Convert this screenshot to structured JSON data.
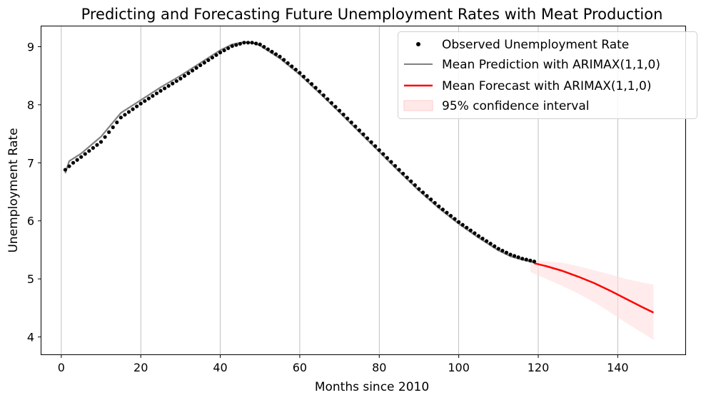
{
  "chart_data": {
    "type": "line",
    "title": "Predicting and Forecasting Future Unemployment Rates with Meat Production",
    "xlabel": "Months since 2010",
    "ylabel": "Unemployment Rate",
    "xlim": [
      -5,
      157
    ],
    "ylim": [
      3.7,
      9.35
    ],
    "x_ticks": [
      0,
      20,
      40,
      60,
      80,
      100,
      120,
      140
    ],
    "y_ticks": [
      4,
      5,
      6,
      7,
      8,
      9
    ],
    "grid": "vertical",
    "legend_position": "top-right",
    "colors": {
      "observed": "#000000",
      "prediction": "#808080",
      "forecast": "#ff0000",
      "ci_fill": "#ffdede"
    },
    "series": [
      {
        "name": "Observed Unemployment Rate",
        "style": "points",
        "anchors_x": [
          1,
          3,
          5,
          10,
          15,
          20,
          25,
          30,
          35,
          40,
          43,
          46,
          48,
          50,
          55,
          60,
          65,
          70,
          75,
          80,
          85,
          90,
          95,
          100,
          105,
          110,
          113,
          116,
          119
        ],
        "anchors_y": [
          6.88,
          7.0,
          7.1,
          7.36,
          7.78,
          8.02,
          8.24,
          8.45,
          8.68,
          8.9,
          9.01,
          9.07,
          9.07,
          9.04,
          8.83,
          8.55,
          8.23,
          7.9,
          7.56,
          7.22,
          6.88,
          6.55,
          6.25,
          5.98,
          5.74,
          5.52,
          5.42,
          5.35,
          5.3
        ]
      },
      {
        "name": "Mean Prediction with ARIMAX(1,1,0)",
        "style": "line",
        "x": [
          1,
          2,
          5,
          10,
          15,
          20,
          25,
          30,
          35,
          40,
          43,
          46,
          48,
          50,
          55,
          60,
          65,
          70,
          75,
          80,
          85,
          90,
          95,
          100,
          105,
          110,
          113,
          116,
          119
        ],
        "y": [
          6.82,
          7.03,
          7.16,
          7.45,
          7.86,
          8.08,
          8.3,
          8.5,
          8.72,
          8.94,
          9.04,
          9.08,
          9.07,
          9.02,
          8.8,
          8.52,
          8.2,
          7.87,
          7.53,
          7.19,
          6.85,
          6.52,
          6.22,
          5.95,
          5.71,
          5.49,
          5.39,
          5.33,
          5.28
        ]
      },
      {
        "name": "Mean Forecast with ARIMAX(1,1,0)",
        "style": "line",
        "x": [
          119,
          122,
          126,
          130,
          134,
          138,
          142,
          146,
          149
        ],
        "y": [
          5.27,
          5.22,
          5.14,
          5.04,
          4.93,
          4.8,
          4.66,
          4.52,
          4.42
        ]
      },
      {
        "name": "95% confidence interval",
        "style": "band",
        "x": [
          118,
          122,
          126,
          130,
          134,
          138,
          142,
          146,
          149
        ],
        "lower": [
          5.12,
          5.0,
          4.88,
          4.75,
          4.6,
          4.43,
          4.25,
          4.08,
          3.95
        ],
        "upper": [
          5.32,
          5.3,
          5.28,
          5.22,
          5.15,
          5.08,
          5.0,
          4.94,
          4.9
        ]
      }
    ]
  }
}
